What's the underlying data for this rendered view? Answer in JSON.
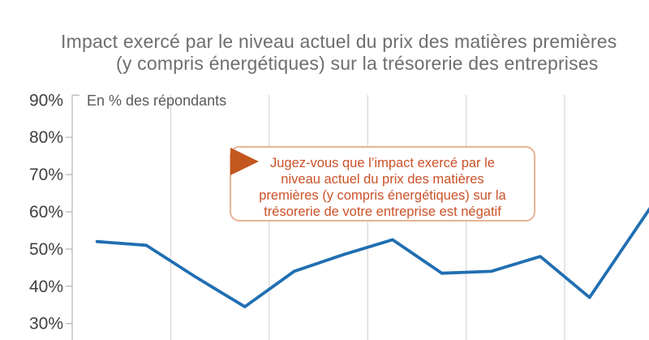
{
  "header": {
    "title_line1": "Impact exercé par le niveau actuel du prix des matières premières",
    "title_line2": "(y compris énergétiques) sur la trésorerie des entreprises"
  },
  "chart_data": {
    "type": "line",
    "title": "Impact exercé par le niveau actuel du prix des matières premières (y compris énergétiques) sur la trésorerie des entreprises",
    "unit_label": "En % des répondants",
    "ylabel": "En % des répondants",
    "y_axis_ticks": [
      "90%",
      "80%",
      "70%",
      "60%",
      "50%",
      "40%",
      "30%"
    ],
    "ylim_visible": [
      30,
      90
    ],
    "grid": "vertical-only",
    "values": [
      52,
      51,
      42.5,
      34.5,
      44,
      48.5,
      52.5,
      43.5,
      44,
      48,
      37,
      56.5
    ],
    "line_clipped_at_right_edge": true,
    "x_axis_labels_visible": false
  },
  "annotation": {
    "lines": [
      "Jugez-vous que l’impact exercé par le",
      "niveau actuel du prix des matières",
      "premières (y compris énergétiques) sur la",
      "trésorerie de votre entreprise est négatif"
    ]
  },
  "colors": {
    "background": "#ffffff",
    "title": "#6e6e6e",
    "tick_label": "#404040",
    "unit_label": "#5a5a5a",
    "axis": "#b9b9b9",
    "gridline": "#d9d9d9",
    "line": "#206eb2",
    "annotation_text": "#cb5128",
    "annotation_border": "#e7b294",
    "annotation_arrow": "#c4571f"
  }
}
